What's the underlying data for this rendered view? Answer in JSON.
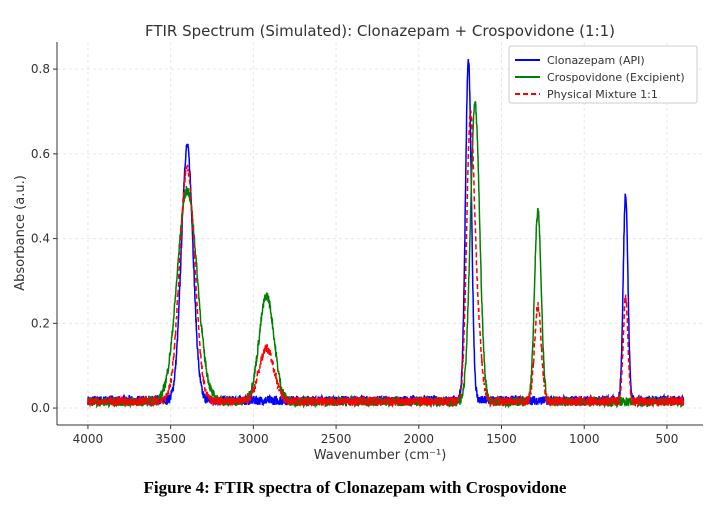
{
  "chart_data": {
    "type": "line",
    "title": "FTIR Spectrum (Simulated): Clonazepam + Crospovidone (1:1)",
    "xlabel": "Wavenumber (cm⁻¹)",
    "ylabel": "Absorbance (a.u.)",
    "xlim": [
      4187,
      282
    ],
    "ylim": [
      -0.04,
      0.864
    ],
    "x_range": [
      4000,
      400
    ],
    "xticks": [
      4000,
      3500,
      3000,
      2500,
      2000,
      1500,
      1000,
      500
    ],
    "yticks": [
      0.0,
      0.2,
      0.4,
      0.6,
      0.8
    ],
    "grid": true,
    "legend_position": "top-right",
    "series": [
      {
        "name": "Clonazepam (API)",
        "color": "#0000ff",
        "style": "solid",
        "baseline": 0.018,
        "peaks": [
          {
            "x": 3400,
            "height": 0.6,
            "sigma": 35
          },
          {
            "x": 1700,
            "height": 0.8,
            "sigma": 18
          },
          {
            "x": 750,
            "height": 0.49,
            "sigma": 14
          }
        ]
      },
      {
        "name": "Crospovidone (Excipient)",
        "color": "#008000",
        "style": "solid",
        "baseline": 0.015,
        "peaks": [
          {
            "x": 3400,
            "height": 0.5,
            "sigma": 60
          },
          {
            "x": 2920,
            "height": 0.25,
            "sigma": 45
          },
          {
            "x": 1660,
            "height": 0.7,
            "sigma": 28
          },
          {
            "x": 1280,
            "height": 0.45,
            "sigma": 20
          }
        ]
      },
      {
        "name": "Physical Mixture 1:1",
        "color": "#ff0000",
        "style": "dashed",
        "baseline": 0.016,
        "peaks": [
          {
            "x": 3400,
            "height": 0.55,
            "sigma": 45
          },
          {
            "x": 2920,
            "height": 0.125,
            "sigma": 45
          },
          {
            "x": 1690,
            "height": 0.62,
            "sigma": 22
          },
          {
            "x": 1650,
            "height": 0.2,
            "sigma": 25
          },
          {
            "x": 1280,
            "height": 0.225,
            "sigma": 20
          },
          {
            "x": 750,
            "height": 0.245,
            "sigma": 14
          }
        ]
      }
    ]
  },
  "caption": "Figure 4: FTIR spectra of Clonazepam with Crospovidone"
}
